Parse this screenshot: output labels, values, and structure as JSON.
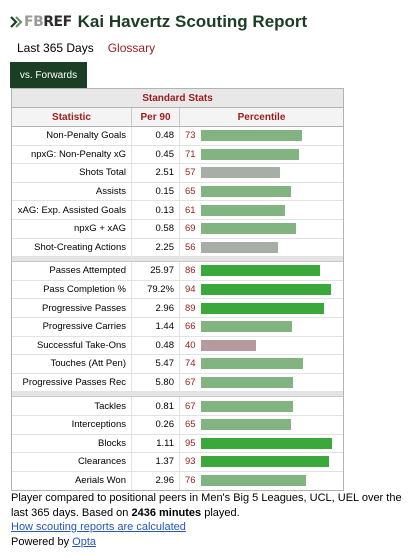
{
  "header": {
    "logo_fb": "FB",
    "logo_ref": "REF",
    "title": "Kai Havertz Scouting Report"
  },
  "subnav": {
    "period": "Last 365 Days",
    "glossary": "Glossary"
  },
  "tab": {
    "label": "vs. Forwards"
  },
  "table": {
    "caption": "Standard Stats",
    "columns": {
      "stat": "Statistic",
      "per90": "Per 90",
      "pct": "Percentile"
    },
    "groups": [
      [
        {
          "stat": "Non-Penalty Goals",
          "per90": "0.48",
          "pct": 73
        },
        {
          "stat": "npxG: Non-Penalty xG",
          "per90": "0.45",
          "pct": 71
        },
        {
          "stat": "Shots Total",
          "per90": "2.51",
          "pct": 57
        },
        {
          "stat": "Assists",
          "per90": "0.15",
          "pct": 65
        },
        {
          "stat": "xAG: Exp. Assisted Goals",
          "per90": "0.13",
          "pct": 61
        },
        {
          "stat": "npxG + xAG",
          "per90": "0.58",
          "pct": 69
        },
        {
          "stat": "Shot-Creating Actions",
          "per90": "2.25",
          "pct": 56
        }
      ],
      [
        {
          "stat": "Passes Attempted",
          "per90": "25.97",
          "pct": 86
        },
        {
          "stat": "Pass Completion %",
          "per90": "79.2%",
          "pct": 94
        },
        {
          "stat": "Progressive Passes",
          "per90": "2.96",
          "pct": 89
        },
        {
          "stat": "Progressive Carries",
          "per90": "1.44",
          "pct": 66
        },
        {
          "stat": "Successful Take-Ons",
          "per90": "0.48",
          "pct": 40
        },
        {
          "stat": "Touches (Att Pen)",
          "per90": "5.47",
          "pct": 74
        },
        {
          "stat": "Progressive Passes Rec",
          "per90": "5.80",
          "pct": 67
        }
      ],
      [
        {
          "stat": "Tackles",
          "per90": "0.81",
          "pct": 67
        },
        {
          "stat": "Interceptions",
          "per90": "0.26",
          "pct": 65
        },
        {
          "stat": "Blocks",
          "per90": "1.11",
          "pct": 95
        },
        {
          "stat": "Clearances",
          "per90": "1.37",
          "pct": 93
        },
        {
          "stat": "Aerials Won",
          "per90": "2.96",
          "pct": 76
        }
      ]
    ]
  },
  "colors": {
    "high": "#3aa83a",
    "mid": "#82b482",
    "low": "#a6aea6",
    "verylow": "#b59a9e"
  },
  "footer": {
    "line_a": "Player compared to positional peers in Men's Big 5 Leagues, UCL, UEL over the last 365 days. Based on ",
    "minutes": "2436 minutes",
    "line_b": " played.",
    "how_link": "How scouting reports are calculated",
    "powered": "Powered by ",
    "opta": "Opta"
  }
}
